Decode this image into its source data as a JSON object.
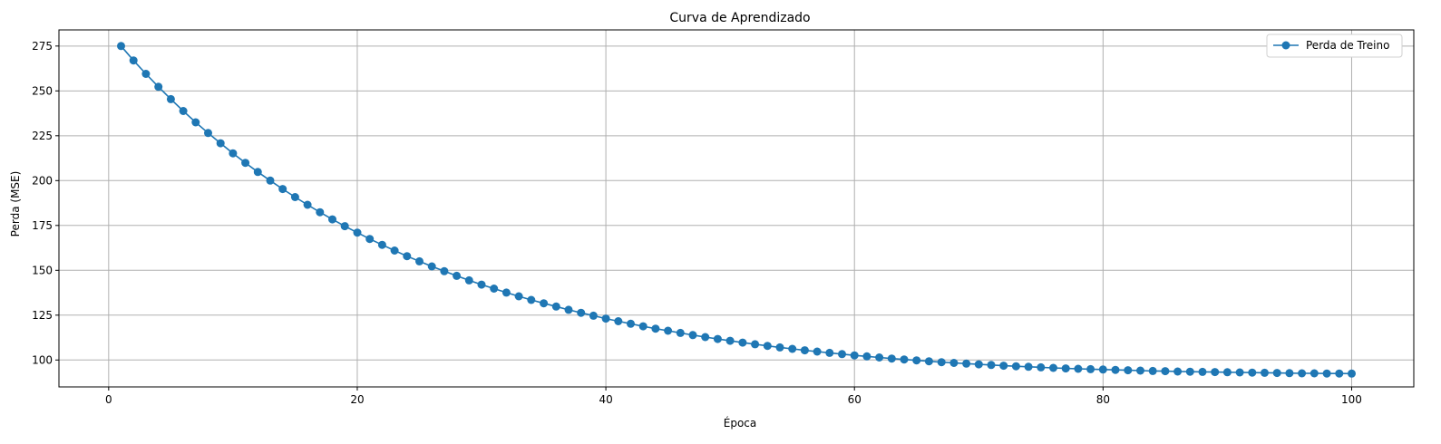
{
  "chart_data": {
    "type": "line",
    "title": "Curva de Aprendizado",
    "xlabel": "Época",
    "ylabel": "Perda (MSE)",
    "xlim": [
      -4,
      105
    ],
    "ylim": [
      85,
      284
    ],
    "xticks": [
      0,
      20,
      40,
      60,
      80,
      100
    ],
    "yticks": [
      100,
      125,
      150,
      175,
      200,
      225,
      250,
      275
    ],
    "grid": true,
    "legend_position": "top-right",
    "series": [
      {
        "name": "Perda de Treino",
        "color": "#1f77b4",
        "marker": "circle",
        "x": [
          1,
          2,
          3,
          4,
          5,
          6,
          7,
          8,
          9,
          10,
          11,
          12,
          13,
          14,
          15,
          16,
          17,
          18,
          19,
          20,
          21,
          22,
          23,
          24,
          25,
          26,
          27,
          28,
          29,
          30,
          31,
          32,
          33,
          34,
          35,
          36,
          37,
          38,
          39,
          40,
          41,
          42,
          43,
          44,
          45,
          46,
          47,
          48,
          49,
          50,
          51,
          52,
          53,
          54,
          55,
          56,
          57,
          58,
          59,
          60,
          61,
          62,
          63,
          64,
          65,
          66,
          67,
          68,
          69,
          70,
          71,
          72,
          73,
          74,
          75,
          76,
          77,
          78,
          79,
          80,
          81,
          82,
          83,
          84,
          85,
          86,
          87,
          88,
          89,
          90,
          91,
          92,
          93,
          94,
          95,
          96,
          97,
          98,
          99,
          100
        ],
        "values": [
          275.0,
          267.0,
          259.5,
          252.3,
          245.4,
          238.8,
          232.5,
          226.5,
          220.8,
          215.2,
          209.9,
          204.8,
          200.0,
          195.3,
          190.8,
          186.5,
          182.4,
          178.4,
          174.6,
          171.0,
          167.5,
          164.2,
          161.0,
          157.9,
          155.0,
          152.2,
          149.5,
          146.9,
          144.4,
          142.0,
          139.8,
          137.6,
          135.5,
          133.5,
          131.6,
          129.8,
          128.0,
          126.3,
          124.7,
          123.1,
          121.6,
          120.2,
          118.8,
          117.5,
          116.3,
          115.1,
          113.9,
          112.8,
          111.7,
          110.7,
          109.7,
          108.8,
          107.9,
          107.0,
          106.2,
          105.4,
          104.7,
          104.0,
          103.3,
          102.6,
          102.0,
          101.4,
          100.8,
          100.3,
          99.8,
          99.3,
          98.8,
          98.4,
          98.0,
          97.6,
          97.2,
          96.8,
          96.5,
          96.2,
          95.9,
          95.6,
          95.3,
          95.1,
          94.9,
          94.7,
          94.5,
          94.3,
          94.1,
          93.9,
          93.8,
          93.6,
          93.5,
          93.4,
          93.3,
          93.2,
          93.1,
          93.0,
          92.9,
          92.8,
          92.7,
          92.6,
          92.6,
          92.5,
          92.5,
          92.4
        ]
      }
    ]
  }
}
